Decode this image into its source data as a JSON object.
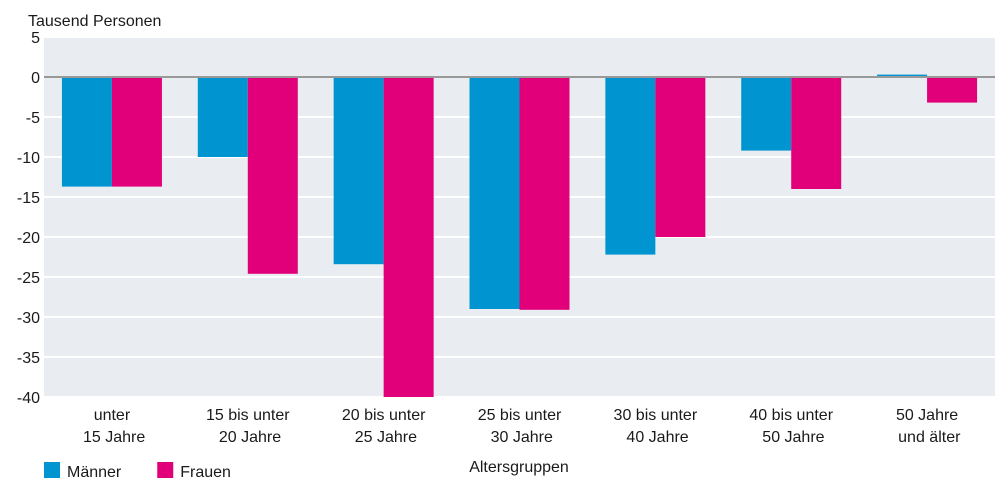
{
  "chart_data": {
    "type": "bar",
    "y_axis_label": "Tausend Personen",
    "x_axis_label": "Altersgruppen",
    "categories": [
      "unter\n15 Jahre",
      "15 bis unter\n20 Jahre",
      "20 bis unter\n25 Jahre",
      "25 bis unter\n30 Jahre",
      "30 bis unter\n40 Jahre",
      "40 bis unter\n50 Jahre",
      "50 Jahre\nund älter"
    ],
    "series": [
      {
        "name": "Männer",
        "color": "#0095d0",
        "values": [
          -13.7,
          -10,
          -23.4,
          -29,
          -22.2,
          -9.2,
          0.3
        ]
      },
      {
        "name": "Frauen",
        "color": "#e2007a",
        "values": [
          -13.7,
          -24.6,
          -40,
          -29.1,
          -20,
          -14,
          -3.2
        ]
      }
    ],
    "ylim": [
      -40,
      5
    ],
    "yticks": [
      5,
      0,
      -5,
      -10,
      -15,
      -20,
      -25,
      -30,
      -35,
      -40
    ],
    "grid": true
  }
}
